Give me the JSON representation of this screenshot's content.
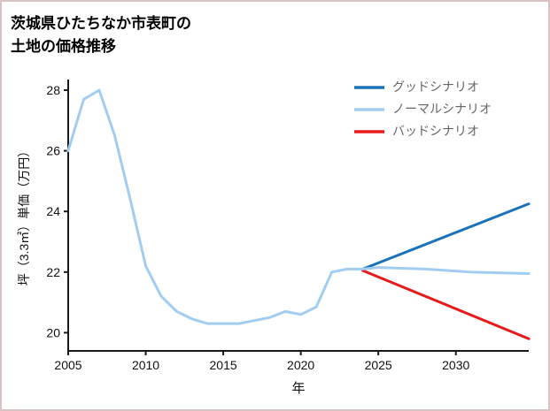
{
  "chart_data": {
    "type": "line",
    "title": "茨城県ひたちなか市表町の土地の価格推移",
    "title_lines": [
      "茨城県ひたちなか市表町の",
      "土地の価格推移"
    ],
    "xlabel": "年",
    "ylabel": "坪（3.3㎡）単価（万円）",
    "xlim": [
      2005,
      2034.7
    ],
    "ylim": [
      19.4,
      28.35
    ],
    "xticks": [
      2005,
      2010,
      2015,
      2020,
      2025,
      2030
    ],
    "yticks": [
      20,
      22,
      24,
      26,
      28
    ],
    "axis_color": "#1a1a1a",
    "tick_label_color": "#111111",
    "legend": {
      "position": "top-right",
      "text_color": "#666666"
    },
    "series": [
      {
        "key": "good-scenario",
        "name": "グッドシナリオ",
        "color": "#1a72ba",
        "x": [
          2024,
          2034.7
        ],
        "y": [
          22.1,
          24.25
        ]
      },
      {
        "key": "normal-scenario",
        "name": "ノーマルシナリオ",
        "color": "#a3cdf0",
        "x": [
          2005,
          2006,
          2007,
          2008,
          2009,
          2010,
          2011,
          2012,
          2013,
          2014,
          2015,
          2016,
          2017,
          2018,
          2019,
          2020,
          2021,
          2022,
          2023,
          2024,
          2025,
          2028,
          2031,
          2034.7
        ],
        "y": [
          26.0,
          27.7,
          28.0,
          26.5,
          24.4,
          22.2,
          21.2,
          20.7,
          20.45,
          20.3,
          20.3,
          20.3,
          20.4,
          20.5,
          20.7,
          20.6,
          20.85,
          22.0,
          22.1,
          22.1,
          22.15,
          22.1,
          22.0,
          21.95
        ]
      },
      {
        "key": "bad-scenario",
        "name": "バッドシナリオ",
        "color": "#e81b1b",
        "x": [
          2024,
          2034.7
        ],
        "y": [
          22.05,
          19.8
        ]
      }
    ]
  }
}
